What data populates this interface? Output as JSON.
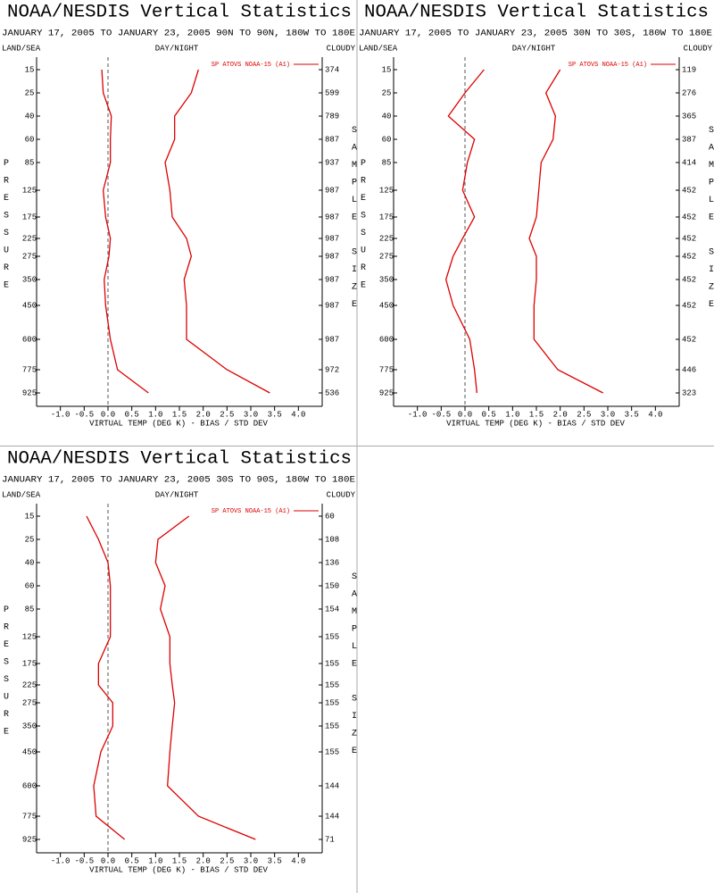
{
  "chart_data": [
    {
      "type": "line",
      "title": "NOAA/NESDIS Vertical Statistics",
      "subtitle": "JANUARY 17, 2005 TO JANUARY 23, 2005 90N TO 90N, 180W TO 180E",
      "left_label": "LAND/SEA",
      "center_label": "DAY/NIGHT",
      "right_label": "CLOUDY",
      "y_label": "PRESSURE",
      "y2_label": "SAMPLE SIZE",
      "x_label": "VIRTUAL TEMP (DEG K) - BIAS / STD DEV",
      "legend": "SP ATOVS NOAA-15 (A1)",
      "categories": [
        15,
        25,
        40,
        60,
        85,
        125,
        175,
        225,
        275,
        350,
        450,
        600,
        775,
        925
      ],
      "sample_size": [
        374,
        599,
        789,
        887,
        937,
        987,
        987,
        987,
        987,
        987,
        987,
        987,
        972,
        536
      ],
      "series": [
        {
          "color": "#dd0000",
          "values": [
            -0.13,
            -0.1,
            0.07,
            0.05,
            0.05,
            -0.1,
            -0.05,
            0.05,
            0.02,
            -0.08,
            -0.05,
            0.05,
            0.2,
            0.85
          ]
        },
        {
          "color": "#dd0000",
          "values": [
            1.9,
            1.75,
            1.4,
            1.4,
            1.2,
            1.3,
            1.35,
            1.65,
            1.75,
            1.6,
            1.65,
            1.65,
            2.5,
            3.4
          ]
        }
      ],
      "xlim": [
        -1.5,
        4.5
      ],
      "xticks": [
        {
          "value": -1,
          "label": "-1.0"
        },
        -0.5,
        {
          "value": 0,
          "label": "0.0"
        },
        0.5,
        {
          "value": 1,
          "label": "1.0"
        },
        1.5,
        {
          "value": 2,
          "label": "2.0"
        },
        2.5,
        {
          "value": 3,
          "label": "3.0"
        },
        3.5,
        {
          "value": 4,
          "label": "4.0"
        }
      ],
      "zero_line": 0
    },
    {
      "type": "line",
      "title": "NOAA/NESDIS Vertical Statistics",
      "subtitle": "JANUARY 17, 2005 TO JANUARY 23, 2005 30N TO 30S, 180W TO 180E",
      "left_label": "LAND/SEA",
      "center_label": "DAY/NIGHT",
      "right_label": "CLOUDY",
      "y_label": "PRESSURE",
      "y2_label": "SAMPLE SIZE",
      "x_label": "VIRTUAL TEMP (DEG K) - BIAS / STD DEV",
      "legend": "SP ATOVS NOAA-15 (A1)",
      "categories": [
        15,
        25,
        40,
        60,
        85,
        125,
        175,
        225,
        275,
        350,
        450,
        600,
        775,
        925
      ],
      "sample_size": [
        119,
        276,
        365,
        387,
        414,
        452,
        452,
        452,
        452,
        452,
        452,
        452,
        446,
        323
      ],
      "series": [
        {
          "color": "#dd0000",
          "values": [
            0.4,
            0,
            -0.35,
            0.2,
            0.05,
            -0.05,
            0.2,
            -0.05,
            -0.25,
            -0.4,
            -0.25,
            0.1,
            0.2,
            0.25
          ]
        },
        {
          "color": "#dd0000",
          "values": [
            2.0,
            1.7,
            1.9,
            1.85,
            1.6,
            1.55,
            1.5,
            1.35,
            1.5,
            1.5,
            1.45,
            1.45,
            1.95,
            2.9
          ]
        }
      ],
      "xlim": [
        -1.5,
        4.5
      ],
      "xticks": [
        {
          "value": -1,
          "label": "-1.0"
        },
        -0.5,
        {
          "value": 0,
          "label": "0.0"
        },
        0.5,
        {
          "value": 1,
          "label": "1.0"
        },
        1.5,
        {
          "value": 2,
          "label": "2.0"
        },
        2.5,
        {
          "value": 3,
          "label": "3.0"
        },
        3.5,
        {
          "value": 4,
          "label": "4.0"
        }
      ],
      "zero_line": 0
    },
    {
      "type": "line",
      "title": "NOAA/NESDIS Vertical Statistics",
      "subtitle": "JANUARY 17, 2005 TO JANUARY 23, 2005 30S TO 90S, 180W TO 180E",
      "left_label": "LAND/SEA",
      "center_label": "DAY/NIGHT",
      "right_label": "CLOUDY",
      "y_label": "PRESSURE",
      "y2_label": "SAMPLE SIZE",
      "x_label": "VIRTUAL TEMP (DEG K) - BIAS / STD DEV",
      "legend": "SP ATOVS NOAA-15 (A1)",
      "categories": [
        15,
        25,
        40,
        60,
        85,
        125,
        175,
        225,
        275,
        350,
        450,
        600,
        775,
        925
      ],
      "sample_size": [
        60,
        108,
        136,
        150,
        154,
        155,
        155,
        155,
        155,
        155,
        155,
        144,
        144,
        71
      ],
      "series": [
        {
          "color": "#dd0000",
          "values": [
            -0.45,
            -0.2,
            0,
            0.05,
            0.05,
            0.05,
            -0.2,
            -0.2,
            0.1,
            0.1,
            -0.15,
            -0.3,
            -0.25,
            0.35
          ]
        },
        {
          "color": "#dd0000",
          "values": [
            1.7,
            1.05,
            1.0,
            1.2,
            1.1,
            1.3,
            1.3,
            1.35,
            1.4,
            1.35,
            1.3,
            1.25,
            1.9,
            3.1
          ]
        }
      ],
      "xlim": [
        -1.5,
        4.5
      ],
      "xticks": [
        {
          "value": -1,
          "label": "-1.0"
        },
        -0.5,
        {
          "value": 0,
          "label": "0.0"
        },
        0.5,
        {
          "value": 1,
          "label": "1.0"
        },
        1.5,
        {
          "value": 2,
          "label": "2.0"
        },
        2.5,
        {
          "value": 3,
          "label": "3.0"
        },
        3.5,
        {
          "value": 4,
          "label": "4.0"
        }
      ],
      "zero_line": 0
    }
  ]
}
